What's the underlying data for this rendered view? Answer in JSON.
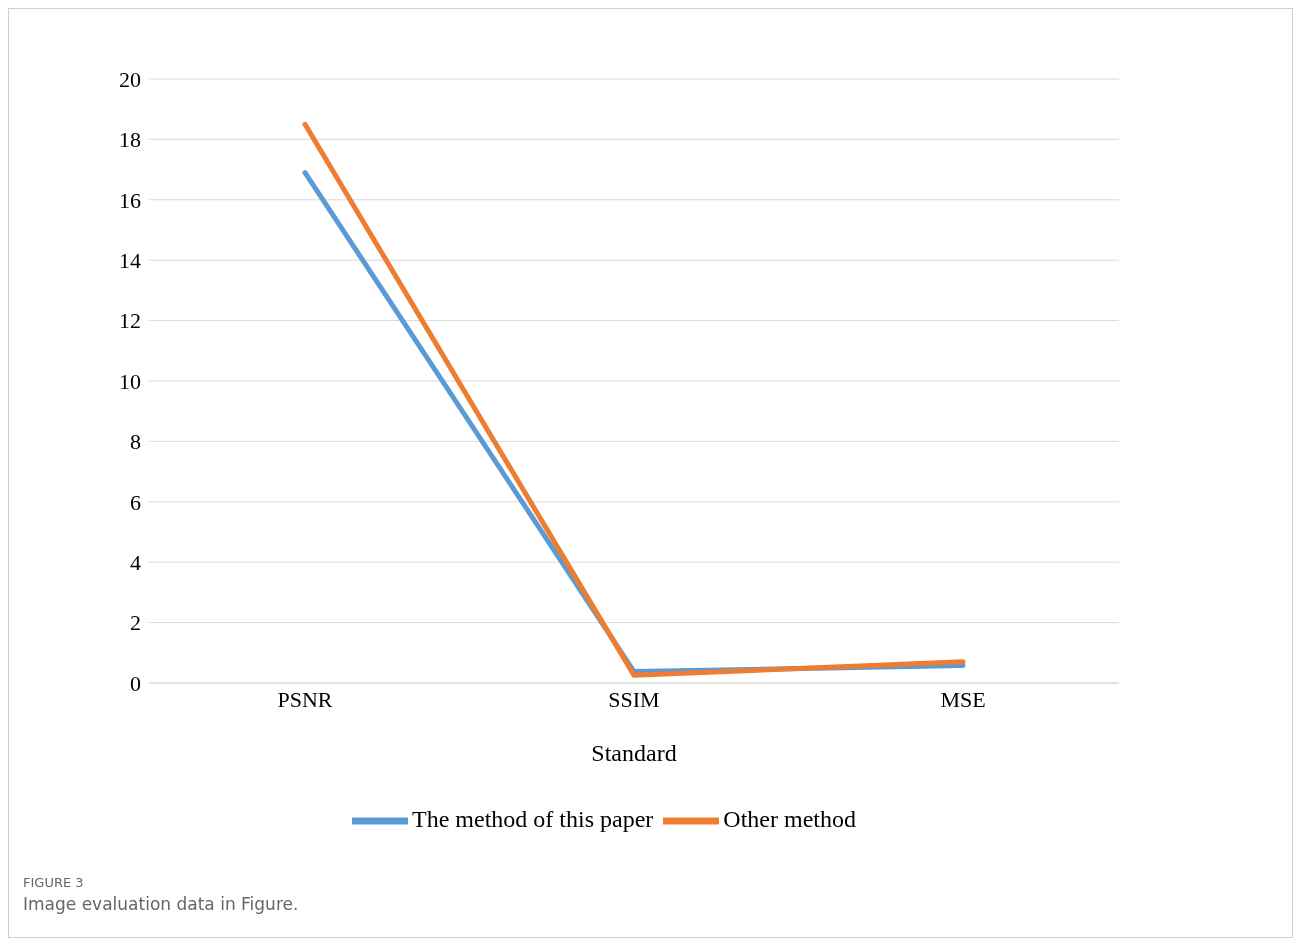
{
  "chart_data": {
    "type": "line",
    "xlabel": "Standard",
    "categories": [
      "PSNR",
      "SSIM",
      "MSE"
    ],
    "series": [
      {
        "name": "The method of this paper",
        "color": "#5b9bd5",
        "values": [
          16.9,
          0.38,
          0.58
        ]
      },
      {
        "name": "Other method",
        "color": "#ed7d31",
        "values": [
          18.5,
          0.26,
          0.7
        ]
      }
    ],
    "ylim": [
      0,
      20
    ],
    "yticks": [
      0,
      2,
      4,
      6,
      8,
      10,
      12,
      14,
      16,
      18,
      20
    ],
    "grid": "y",
    "legend": "bottom",
    "marker": "none",
    "line_style": "solid",
    "annotations": [
      "FIGURE 3",
      "Image evaluation data in Figure."
    ]
  }
}
